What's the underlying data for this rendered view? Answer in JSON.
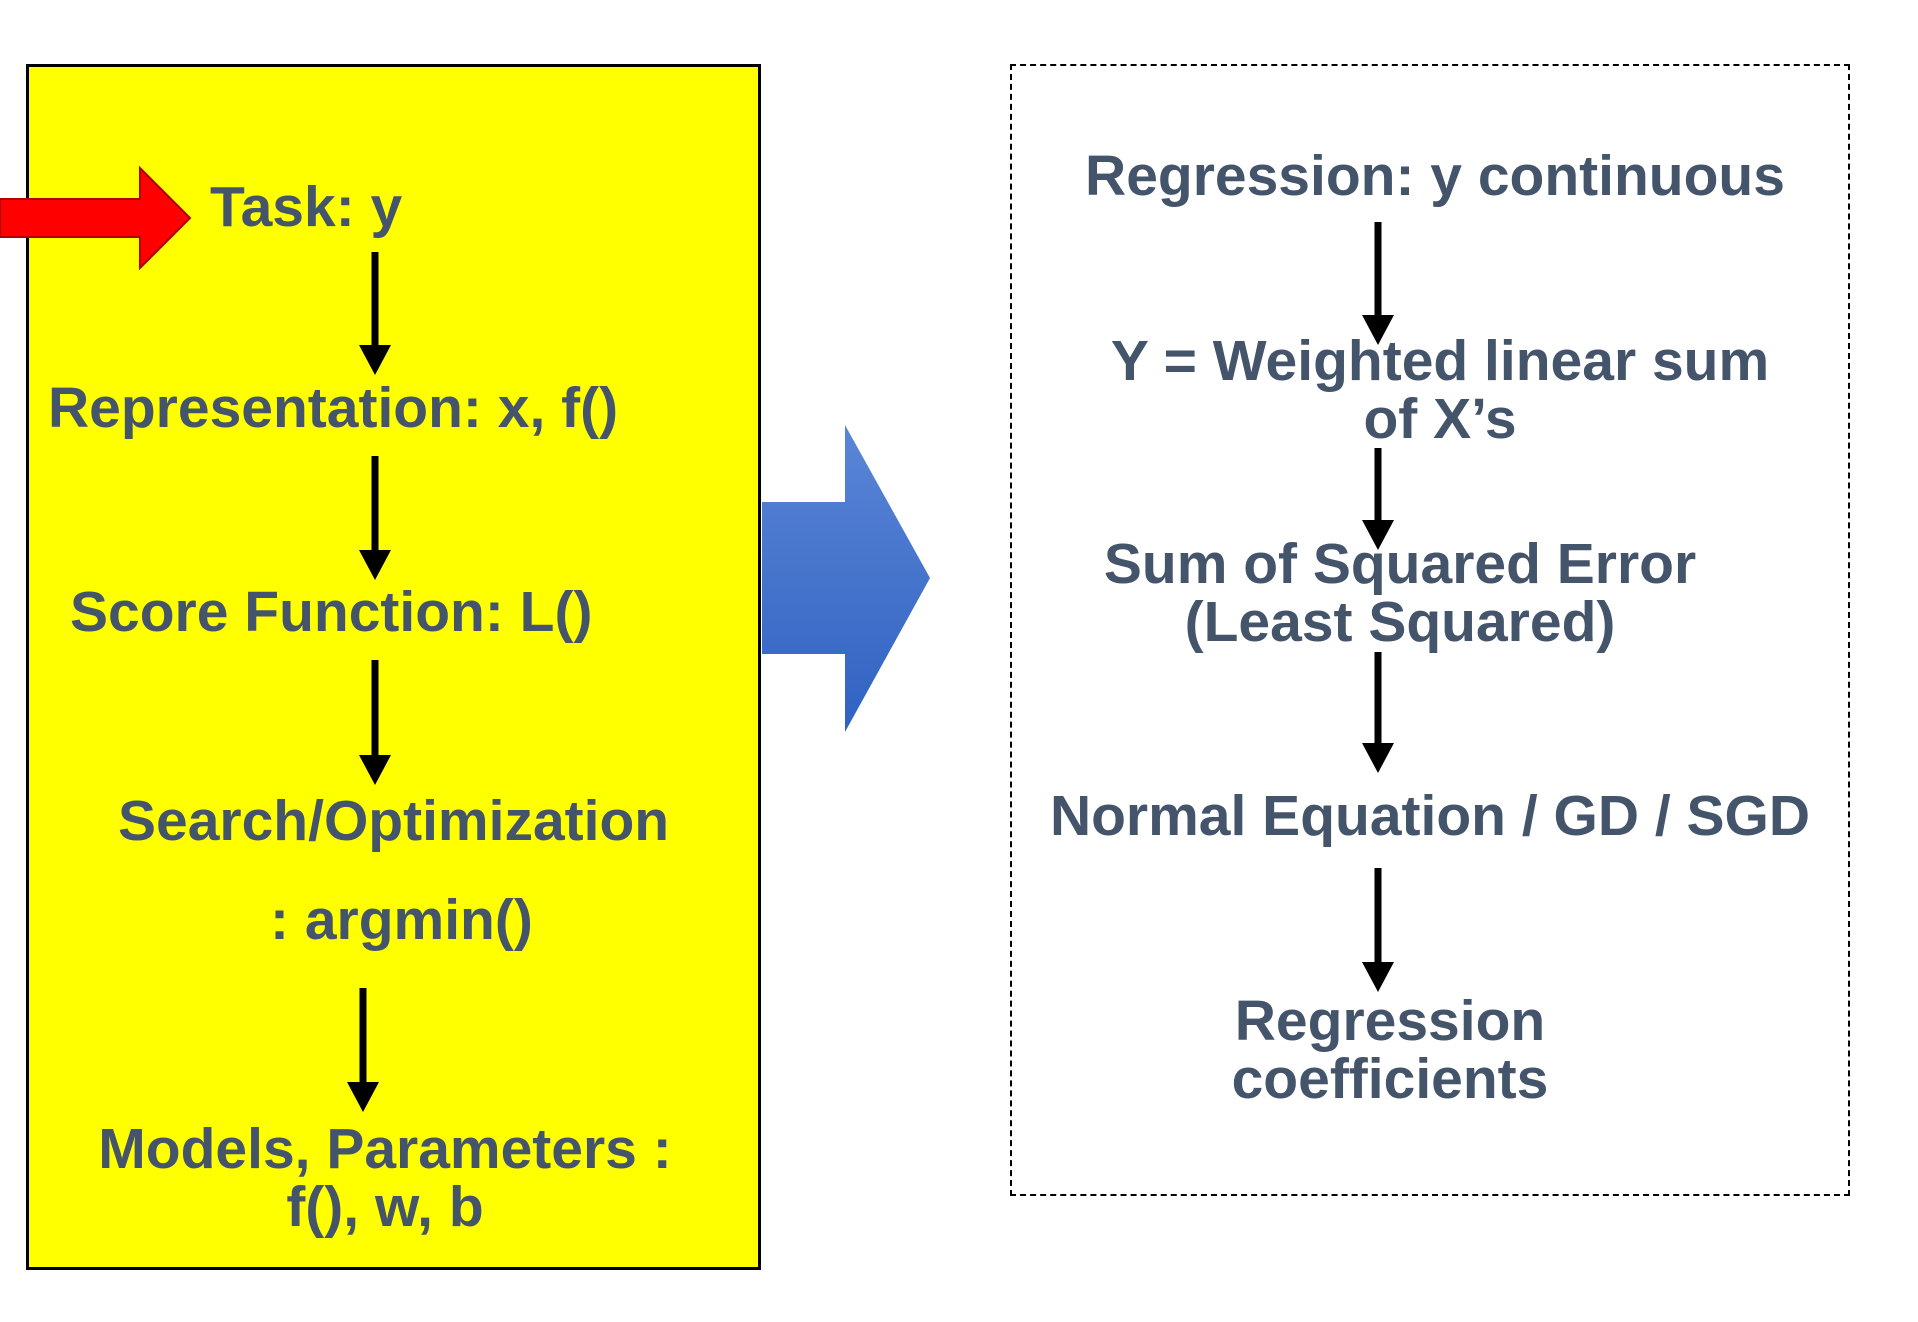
{
  "left_panel": {
    "task": "Task:   y",
    "representation": "Representation:   x, f()",
    "score_function": "Score Function:   L()",
    "search_optimization": "Search/Optimization",
    "argmin": ": argmin()",
    "models_parameters": "Models, Parameters :\nf(), w, b"
  },
  "right_panel": {
    "regression_continuous": "Regression: y continuous",
    "weighted_sum": "Y = Weighted linear sum\nof X’s",
    "sse": "Sum of Squared Error\n(Least Squared)",
    "normal_equation": "Normal Equation / GD / SGD",
    "coefficients": "Regression\ncoefficients"
  },
  "colors": {
    "text": "#44546a",
    "left_box_fill": "#ffff00",
    "input_arrow": "#ff0000",
    "transition_arrow": "#3b6cc8"
  }
}
